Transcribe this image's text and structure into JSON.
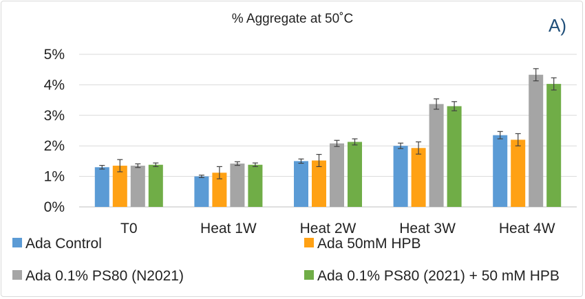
{
  "chart_data": {
    "type": "bar",
    "title": "% Aggregate at 50˚C",
    "panel_label": "A)",
    "xlabel": "",
    "ylabel": "",
    "ylim": [
      0,
      5
    ],
    "ytick_values": [
      0,
      1,
      2,
      3,
      4,
      5
    ],
    "ytick_labels": [
      "0%",
      "1%",
      "2%",
      "3%",
      "4%",
      "5%"
    ],
    "grid": true,
    "legend_position": "bottom",
    "error_bars": true,
    "categories": [
      "T0",
      "Heat 1W",
      "Heat 2W",
      "Heat 3W",
      "Heat 4W"
    ],
    "series": [
      {
        "name": "Ada Control",
        "color": "#5b9bd5",
        "values": [
          1.3,
          1.0,
          1.5,
          2.0,
          2.35
        ],
        "errors": [
          0.06,
          0.04,
          0.07,
          0.09,
          0.12
        ]
      },
      {
        "name": "Ada 50mM HPB",
        "color": "#ffa114",
        "values": [
          1.35,
          1.12,
          1.52,
          1.93,
          2.2
        ],
        "errors": [
          0.2,
          0.2,
          0.2,
          0.2,
          0.2
        ]
      },
      {
        "name": "Ada 0.1% PS80 (N2021)",
        "color": "#a5a5a5",
        "values": [
          1.35,
          1.42,
          2.08,
          3.37,
          4.33
        ],
        "errors": [
          0.06,
          0.06,
          0.1,
          0.17,
          0.2
        ]
      },
      {
        "name": "Ada 0.1% PS80 (2021) + 50 mM HPB",
        "color": "#70ad47",
        "values": [
          1.38,
          1.38,
          2.13,
          3.3,
          4.03
        ],
        "errors": [
          0.06,
          0.06,
          0.1,
          0.15,
          0.2
        ]
      }
    ]
  }
}
